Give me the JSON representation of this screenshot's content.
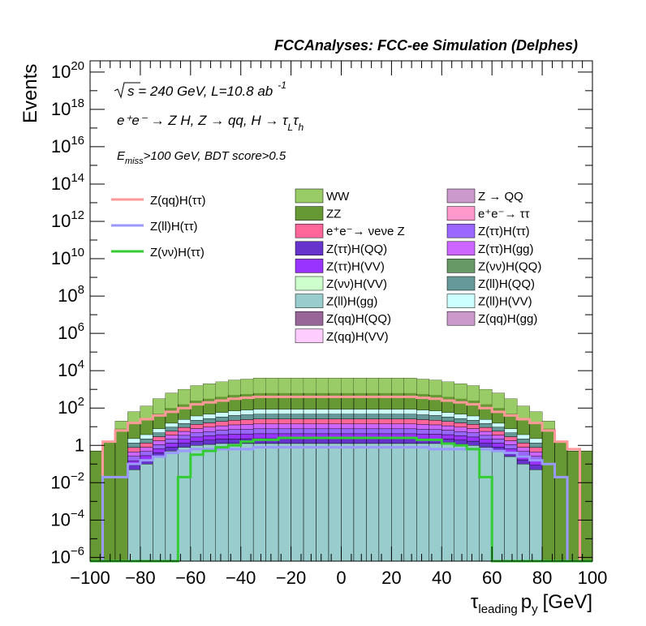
{
  "chart_data": {
    "type": "histogram",
    "title": "FCCAnalyses: FCC-ee Simulation (Delphes)",
    "ylabel": "Events",
    "xlabel_main": "τ",
    "xlabel_sub": "leading",
    "xlabel_var": "p",
    "xlabel_var_sub": "y",
    "xlabel_unit": "[GeV]",
    "ylog": true,
    "xlim": [
      -100,
      100
    ],
    "ylim_log10": [
      -6.2,
      20.6
    ],
    "x_ticks": [
      -100,
      -80,
      -60,
      -40,
      -20,
      0,
      20,
      40,
      60,
      80,
      100
    ],
    "x_tick_labels": [
      "−100",
      "−80",
      "−60",
      "−40",
      "−20",
      "0",
      "20",
      "40",
      "60",
      "80",
      "100"
    ],
    "y_ticks": [
      {
        "base": "10",
        "exp": "20",
        "log": 20
      },
      {
        "base": "10",
        "exp": "18",
        "log": 18
      },
      {
        "base": "10",
        "exp": "16",
        "log": 16
      },
      {
        "base": "10",
        "exp": "14",
        "log": 14
      },
      {
        "base": "10",
        "exp": "12",
        "log": 12
      },
      {
        "base": "10",
        "exp": "10",
        "log": 10
      },
      {
        "base": "10",
        "exp": "8",
        "log": 8
      },
      {
        "base": "10",
        "exp": "6",
        "log": 6
      },
      {
        "base": "10",
        "exp": "4",
        "log": 4
      },
      {
        "base": "10",
        "exp": "2",
        "log": 2
      },
      {
        "base": "1",
        "exp": "",
        "log": 0
      },
      {
        "base": "10",
        "exp": "−2",
        "log": -2
      },
      {
        "base": "10",
        "exp": "−4",
        "log": -4
      },
      {
        "base": "10",
        "exp": "−6",
        "log": -6
      }
    ],
    "annotations": {
      "sqrt_s": "s = 240 GeV, L=10.8 ab",
      "lumi_exp": "-1",
      "process": "e⁺e⁻ → Z H, Z → qq, H → τ",
      "process_sub1": "L",
      "process_tau2": "τ",
      "process_sub2": "h",
      "cut_E": "E",
      "cut_sub": "miss",
      "cut_rest": ">100 GeV, BDT score>0.5"
    },
    "bins_edges": [
      -100,
      90
    ],
    "stacked_backgrounds": [
      {
        "name": "WW",
        "color": "#99cc66"
      },
      {
        "name": "ZZ",
        "color": "#669933"
      },
      {
        "name": "e⁺e⁻→ νeνe Z",
        "color": "#ff6699"
      },
      {
        "name": "Z(ττ)H(QQ)",
        "color": "#6633cc"
      },
      {
        "name": "Z(ττ)H(VV)",
        "color": "#9933ff"
      },
      {
        "name": "Z(νν)H(VV)",
        "color": "#ccffcc"
      },
      {
        "name": "Z(ll)H(gg)",
        "color": "#99cccc"
      },
      {
        "name": "Z(qq)H(QQ)",
        "color": "#996699"
      },
      {
        "name": "Z(qq)H(VV)",
        "color": "#ffccff"
      },
      {
        "name": "Z → QQ",
        "color": "#cc99cc"
      },
      {
        "name": "e⁺e⁻→ ττ",
        "color": "#ff99cc"
      },
      {
        "name": "Z(ττ)H(ττ)",
        "color": "#9966ff"
      },
      {
        "name": "Z(ττ)H(gg)",
        "color": "#cc66ff"
      },
      {
        "name": "Z(νν)H(QQ)",
        "color": "#669966"
      },
      {
        "name": "Z(ll)H(QQ)",
        "color": "#669999"
      },
      {
        "name": "Z(ll)H(VV)",
        "color": "#ccffff"
      },
      {
        "name": "Z(qq)H(gg)",
        "color": "#cc99cc"
      }
    ],
    "signals": [
      {
        "name": "Z(qq)H(ττ)",
        "color": "#ff9999"
      },
      {
        "name": "Z(ll)H(ττ)",
        "color": "#9999ff"
      },
      {
        "name": "Z(νν)H(ττ)",
        "color": "#33cc33"
      }
    ],
    "bin_width": 5,
    "bin_centers": [
      -97.5,
      -92.5,
      -87.5,
      -82.5,
      -77.5,
      -72.5,
      -67.5,
      -62.5,
      -57.5,
      -52.5,
      -47.5,
      -42.5,
      -37.5,
      -32.5,
      -27.5,
      -22.5,
      -17.5,
      -12.5,
      -7.5,
      -2.5,
      2.5,
      7.5,
      12.5,
      17.5,
      22.5,
      27.5,
      32.5,
      37.5,
      42.5,
      47.5,
      52.5,
      57.5,
      62.5,
      67.5,
      72.5,
      77.5,
      82.5,
      87.5,
      92.5,
      97.5
    ],
    "log10_total": [
      -0.3,
      0.2,
      1.3,
      1.8,
      2.1,
      2.5,
      2.8,
      3.0,
      3.2,
      3.3,
      3.4,
      3.5,
      3.55,
      3.6,
      3.6,
      3.6,
      3.6,
      3.6,
      3.6,
      3.6,
      3.6,
      3.6,
      3.6,
      3.6,
      3.6,
      3.6,
      3.55,
      3.5,
      3.4,
      3.3,
      3.2,
      3.0,
      2.8,
      2.5,
      2.1,
      1.8,
      1.3,
      0.2,
      -0.3,
      -0.3
    ],
    "log10_ww": [
      -0.3,
      0.2,
      0.9,
      1.2,
      1.4,
      1.7,
      2.0,
      2.2,
      2.4,
      2.5,
      2.6,
      2.7,
      2.75,
      2.8,
      2.8,
      2.8,
      2.8,
      2.8,
      2.8,
      2.8,
      2.8,
      2.8,
      2.8,
      2.8,
      2.8,
      2.8,
      2.75,
      2.7,
      2.6,
      2.5,
      2.4,
      2.2,
      2.0,
      1.7,
      1.4,
      1.2,
      0.9,
      0.2,
      -0.3,
      -0.3
    ],
    "log10_zll_gg": [
      -6.2,
      -6.2,
      -6.2,
      -1.3,
      -1.0,
      -0.6,
      -0.3,
      -0.1,
      0.0,
      0.05,
      0.1,
      0.1,
      0.1,
      0.1,
      0.1,
      0.1,
      0.1,
      0.1,
      0.1,
      0.1,
      0.1,
      0.1,
      0.1,
      0.1,
      0.1,
      0.1,
      0.1,
      0.1,
      0.1,
      0.05,
      0.0,
      -0.1,
      -0.3,
      -0.6,
      -1.0,
      -1.3,
      -6.2,
      -6.2,
      -6.2,
      -6.2
    ],
    "log10_zqq_htautau": [
      -6.2,
      0.2,
      0.8,
      1.2,
      1.4,
      1.6,
      1.8,
      2.0,
      2.2,
      2.3,
      2.4,
      2.5,
      2.55,
      2.6,
      2.6,
      2.6,
      2.6,
      2.6,
      2.6,
      2.6,
      2.6,
      2.6,
      2.6,
      2.6,
      2.6,
      2.6,
      2.55,
      2.5,
      2.4,
      2.3,
      2.2,
      2.0,
      1.8,
      1.6,
      1.4,
      1.2,
      0.8,
      0.2,
      -0.2,
      -6.2
    ],
    "log10_zll_htautau": [
      -6.2,
      -1.7,
      -1.7,
      -1.0,
      -0.8,
      -0.6,
      -0.4,
      -0.3,
      -0.2,
      -0.2,
      -0.2,
      -0.2,
      -0.2,
      -0.1,
      -0.1,
      -0.1,
      -0.1,
      -0.1,
      -0.1,
      -0.1,
      -0.1,
      -0.1,
      -0.1,
      -0.1,
      -0.1,
      -0.1,
      -0.1,
      -0.2,
      -0.2,
      -0.2,
      -0.2,
      -0.2,
      -0.3,
      -0.4,
      -0.6,
      -0.8,
      -1.0,
      -1.7,
      -6.2,
      -6.2
    ],
    "log10_znn_htautau": [
      -6.2,
      -6.2,
      -6.2,
      -6.2,
      -6.2,
      -6.2,
      -6.2,
      -1.7,
      -0.5,
      -0.3,
      -0.1,
      0.0,
      0.2,
      0.3,
      0.3,
      0.4,
      0.4,
      0.4,
      0.4,
      0.4,
      0.4,
      0.4,
      0.4,
      0.4,
      0.4,
      0.4,
      0.3,
      0.3,
      0.1,
      0.0,
      -0.2,
      -1.7,
      -6.2,
      -6.2,
      -6.2,
      -6.2,
      -6.2,
      -6.2,
      -6.2,
      -6.2
    ]
  }
}
